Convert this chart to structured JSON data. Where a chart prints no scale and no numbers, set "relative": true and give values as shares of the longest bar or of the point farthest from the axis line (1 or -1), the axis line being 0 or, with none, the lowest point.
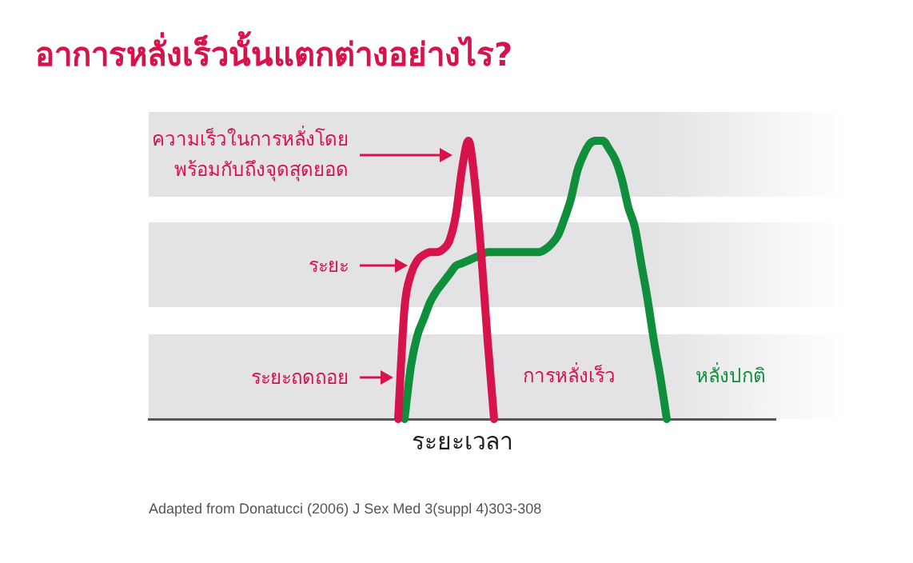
{
  "chart_data": {
    "type": "line",
    "relative": true,
    "title": "อาการหลั่งเร็วนั้นแตกต่างอย่างไร?",
    "xlabel": "ระยะเวลา",
    "marker": "none",
    "categories": [
      null,
      null,
      null,
      null,
      null,
      null,
      null,
      null,
      null,
      null,
      null,
      null,
      null,
      null,
      null,
      null,
      null,
      null,
      null,
      null,
      null,
      null,
      null,
      null,
      null,
      null,
      null,
      null,
      null,
      null,
      null,
      null,
      null,
      null,
      null,
      null,
      null,
      null,
      null,
      null,
      null,
      null,
      null,
      null,
      null,
      null,
      null,
      null,
      null,
      null,
      null,
      null,
      null,
      null,
      null,
      null,
      null,
      null,
      null,
      null,
      null,
      null,
      null,
      null,
      null,
      null,
      null,
      null,
      null,
      null,
      null,
      null,
      null,
      null,
      null,
      null,
      null,
      null,
      null,
      null,
      null,
      null,
      null,
      null,
      null,
      null,
      null,
      null,
      null,
      null,
      null,
      null,
      null,
      null,
      null,
      null,
      null,
      null,
      null
    ],
    "series": [
      {
        "name": "การหลั่งเร็ว",
        "color": "#d6134a",
        "values": [
          null,
          null,
          null,
          null,
          null,
          null,
          null,
          null,
          null,
          null,
          null,
          null,
          null,
          null,
          null,
          null,
          null,
          null,
          null,
          null,
          null,
          null,
          null,
          null,
          null,
          null,
          null,
          null,
          null,
          null,
          null,
          null,
          null,
          null,
          null,
          null,
          null,
          null,
          null,
          0,
          0.4,
          0.52,
          0.57,
          0.59,
          0.6,
          0.6,
          0.61,
          0.64,
          0.73,
          0.9,
          1,
          0.85,
          0.59,
          0.28,
          0,
          null,
          null,
          null,
          null,
          null,
          null,
          null,
          null,
          null,
          null,
          null,
          null,
          null,
          null,
          null,
          null,
          null,
          null,
          null,
          null,
          null,
          null,
          null,
          null,
          null,
          null,
          null,
          null,
          null,
          null,
          null,
          null,
          null,
          null,
          null,
          null,
          null,
          null,
          null,
          null,
          null,
          null,
          null,
          null
        ]
      },
      {
        "name": "หลั่งปกติ",
        "color": "#0f8f3b",
        "values": [
          null,
          null,
          null,
          null,
          null,
          null,
          null,
          null,
          null,
          null,
          null,
          null,
          null,
          null,
          null,
          null,
          null,
          null,
          null,
          null,
          null,
          null,
          null,
          null,
          null,
          null,
          null,
          null,
          null,
          null,
          null,
          null,
          null,
          null,
          null,
          null,
          null,
          null,
          null,
          null,
          0,
          0.19,
          0.3,
          0.36,
          0.42,
          0.46,
          0.49,
          0.52,
          0.55,
          0.56,
          0.57,
          0.58,
          0.59,
          0.6,
          0.6,
          0.6,
          0.6,
          0.6,
          0.6,
          0.6,
          0.6,
          0.6,
          0.61,
          0.63,
          0.66,
          0.72,
          0.79,
          0.89,
          0.95,
          0.99,
          1,
          1,
          0.97,
          0.93,
          0.86,
          0.76,
          0.69,
          0.56,
          0.43,
          0.28,
          0.15,
          0,
          null,
          null,
          null,
          null,
          null,
          null,
          null,
          null,
          null,
          null,
          null,
          null,
          null,
          null,
          null,
          null,
          null
        ]
      }
    ],
    "annotations": [
      "ความเร็วในการหลั่งโดย\nพร้อมกับถึงจุดสุดยอด",
      "ระยะ",
      "ระยะถดถอย",
      "Adapted from Donatucci (2006) J Sex Med 3(suppl 4)303-308"
    ]
  }
}
